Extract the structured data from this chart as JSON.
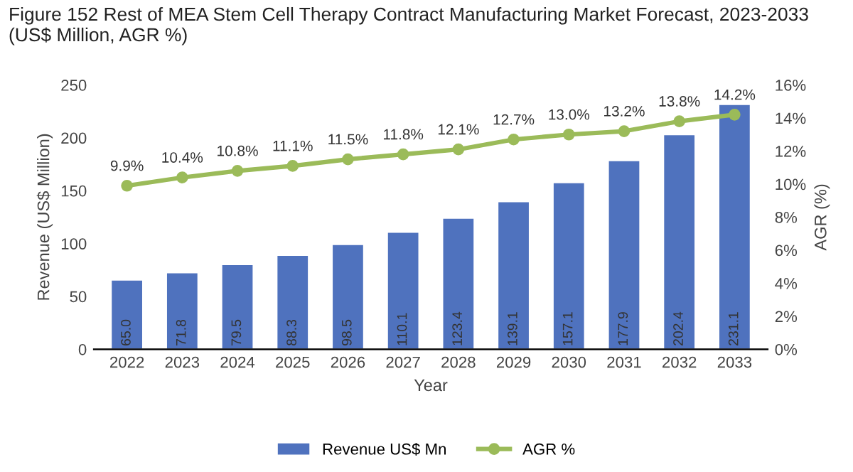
{
  "chart_data": {
    "type": "bar",
    "title": "Figure 152 Rest of MEA Stem Cell Therapy Contract Manufacturing Market Forecast, 2023-2033\n(US$ Million, AGR %)",
    "xlabel": "Year",
    "ylabel": "Revenue (US$ Million)",
    "y2label": "AGR (%)",
    "categories": [
      "2022",
      "2023",
      "2024",
      "2025",
      "2026",
      "2027",
      "2028",
      "2029",
      "2030",
      "2031",
      "2032",
      "2033"
    ],
    "series": [
      {
        "name": "Revenue US$ Mn",
        "color": "#4f72be",
        "values": [
          65.0,
          71.8,
          79.5,
          88.3,
          98.5,
          110.1,
          123.4,
          139.1,
          157.1,
          177.9,
          202.4,
          231.1
        ],
        "value_labels": [
          "65.0",
          "71.8",
          "79.5",
          "88.3",
          "98.5",
          "110.1",
          "123.4",
          "139.1",
          "157.1",
          "177.9",
          "202.4",
          "231.1"
        ]
      },
      {
        "name": "AGR %",
        "type": "line",
        "axis": "y2",
        "color": "#9bbb59",
        "marker": "circle",
        "line_style": "solid",
        "values": [
          9.9,
          10.4,
          10.8,
          11.1,
          11.5,
          11.8,
          12.1,
          12.7,
          13.0,
          13.2,
          13.8,
          14.2
        ],
        "value_labels": [
          "9.9%",
          "10.4%",
          "10.8%",
          "11.1%",
          "11.5%",
          "11.8%",
          "12.1%",
          "12.7%",
          "13.0%",
          "13.2%",
          "13.8%",
          "14.2%"
        ]
      }
    ],
    "ylim": [
      0,
      250
    ],
    "yticks": [
      0,
      50,
      100,
      150,
      200,
      250
    ],
    "y2lim": [
      0,
      16
    ],
    "y2ticks": [
      {
        "value": 0,
        "label": "0%"
      },
      {
        "value": 2,
        "label": "2%"
      },
      {
        "value": 4,
        "label": "4%"
      },
      {
        "value": 6,
        "label": "6%"
      },
      {
        "value": 8,
        "label": "8%"
      },
      {
        "value": 10,
        "label": "10%"
      },
      {
        "value": 12,
        "label": "12%"
      },
      {
        "value": 14,
        "label": "14%"
      },
      {
        "value": 16,
        "label": "16%"
      }
    ],
    "grid": false,
    "legend": "bottom"
  }
}
